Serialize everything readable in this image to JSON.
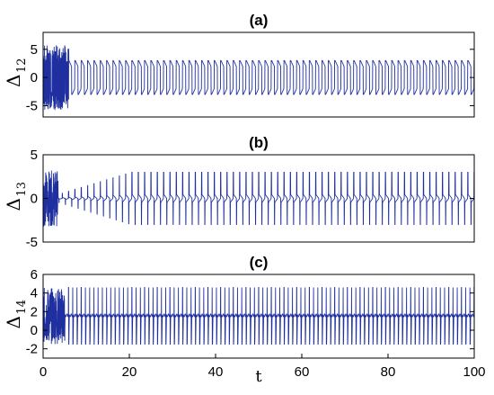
{
  "chart_data": [
    {
      "type": "line",
      "title": "(a)",
      "ylabel": "Δ",
      "ylabel_sub": "12",
      "xlim": [
        0,
        100
      ],
      "ylim": [
        -7,
        8
      ],
      "yticks": [
        -5,
        0,
        5
      ],
      "ytick_labels": [
        "-5",
        "0",
        "5"
      ],
      "show_xticks": false,
      "series": [
        {
          "color": "#1f2f9f",
          "kind": "sawtooth",
          "period": 1.47,
          "amplitude": 3.0,
          "transient_end": 6.0,
          "transient_amplitude": 6.5,
          "offset": 0.0
        }
      ]
    },
    {
      "type": "line",
      "title": "(b)",
      "ylabel": "Δ",
      "ylabel_sub": "13",
      "xlim": [
        0,
        100
      ],
      "ylim": [
        -5,
        5
      ],
      "yticks": [
        -5,
        0,
        5
      ],
      "ytick_labels": [
        "-5",
        "0",
        "5"
      ],
      "show_xticks": false,
      "series": [
        {
          "color": "#1f2f9f",
          "kind": "growing-spikes",
          "period": 1.47,
          "amplitude": 3.0,
          "transient_end": 3.5,
          "transient_amplitude": 3.2,
          "offset": 0.0
        }
      ]
    },
    {
      "type": "line",
      "title": "(c)",
      "ylabel": "Δ",
      "ylabel_sub": "14",
      "xlabel": "t",
      "xlim": [
        0,
        100
      ],
      "ylim": [
        -3,
        6
      ],
      "yticks": [
        -2,
        0,
        2,
        4,
        6
      ],
      "ytick_labels": [
        "-2",
        "0",
        "2",
        "4",
        "6"
      ],
      "xticks": [
        0,
        20,
        40,
        60,
        80,
        100
      ],
      "xtick_labels": [
        "0",
        "20",
        "40",
        "60",
        "80",
        "100"
      ],
      "show_xticks": true,
      "series": [
        {
          "color": "#1f2f9f",
          "kind": "pulse-train",
          "period": 0.98,
          "high": 4.6,
          "low": -1.5,
          "mid": 1.6,
          "transient_end": 5.0
        }
      ]
    }
  ]
}
